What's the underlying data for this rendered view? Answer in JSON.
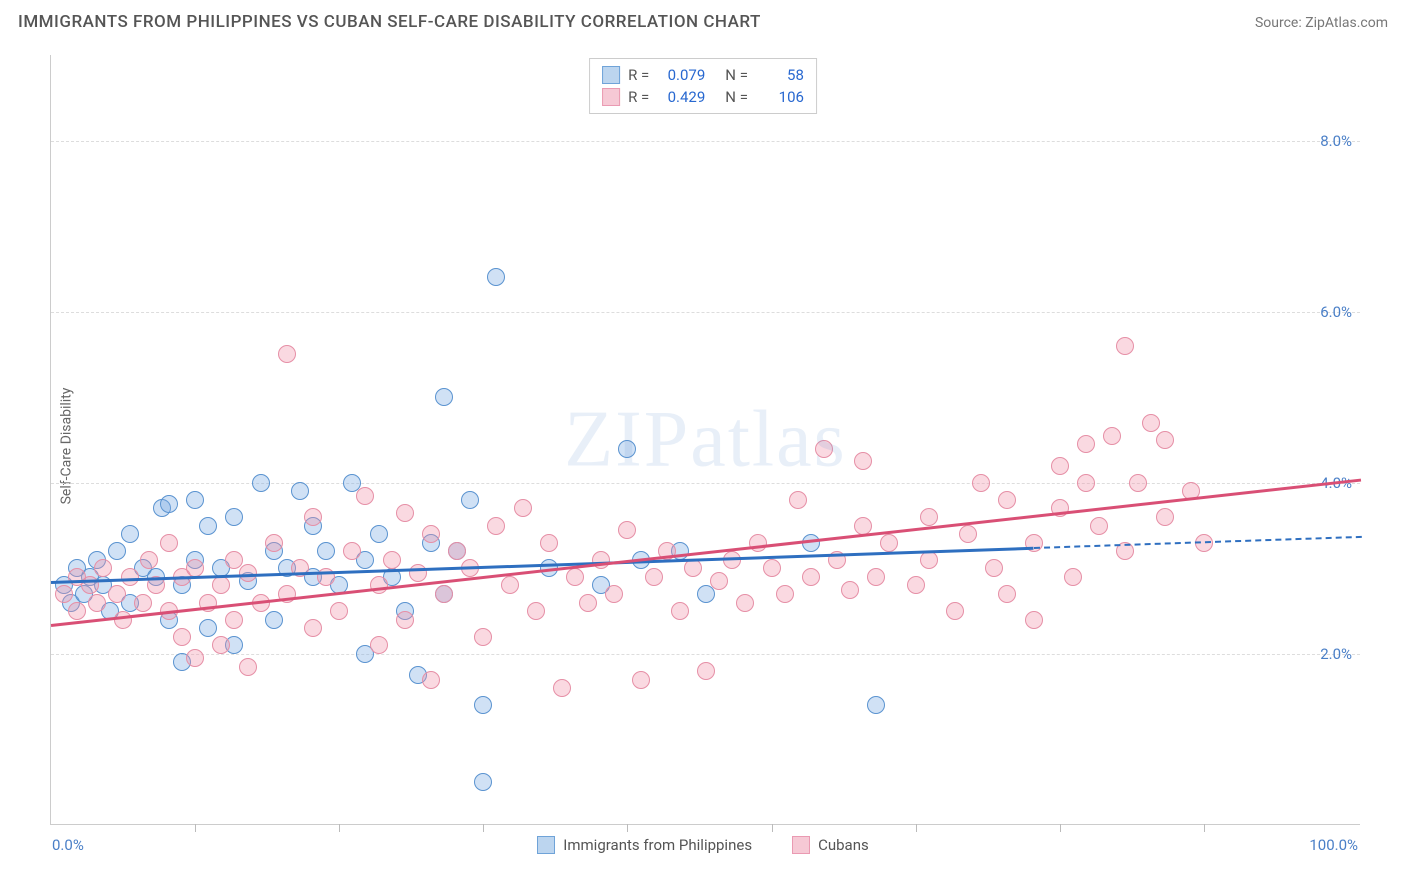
{
  "title": "IMMIGRANTS FROM PHILIPPINES VS CUBAN SELF-CARE DISABILITY CORRELATION CHART",
  "source_prefix": "Source: ",
  "source_name": "ZipAtlas.com",
  "ylabel": "Self-Care Disability",
  "watermark": "ZIPatlas",
  "chart": {
    "type": "scatter",
    "xlim": [
      0,
      100
    ],
    "ylim": [
      0,
      9
    ],
    "yticks": [
      2.0,
      4.0,
      6.0,
      8.0
    ],
    "ytick_labels": [
      "2.0%",
      "4.0%",
      "6.0%",
      "8.0%"
    ],
    "xtick_positions": [
      11,
      22,
      33,
      44,
      55,
      66,
      77,
      88
    ],
    "x_min_label": "0.0%",
    "x_max_label": "100.0%",
    "background_color": "#ffffff",
    "grid_color": "#dddddd",
    "axis_label_color": "#4a7fc7",
    "marker_radius": 9,
    "marker_opacity": 0.35,
    "line_width": 2.5
  },
  "series": [
    {
      "key": "philippines",
      "label": "Immigrants from Philippines",
      "color_fill": "rgba(120,170,225,0.35)",
      "color_stroke": "#5a93d0",
      "swatch_fill": "#bcd5ef",
      "swatch_stroke": "#6fa3d8",
      "R_label": "R =",
      "R": "0.079",
      "N_label": "N =",
      "N": "58",
      "trend": {
        "x0": 0,
        "y0": 2.85,
        "x1": 75,
        "y1": 3.25,
        "x1_dash": 100,
        "y1_dash": 3.38,
        "color": "#2e6fc0"
      },
      "points": [
        [
          1,
          2.8
        ],
        [
          1.5,
          2.6
        ],
        [
          2,
          3.0
        ],
        [
          2.5,
          2.7
        ],
        [
          3,
          2.9
        ],
        [
          3.5,
          3.1
        ],
        [
          4,
          2.8
        ],
        [
          4.5,
          2.5
        ],
        [
          5,
          3.2
        ],
        [
          6,
          2.6
        ],
        [
          6,
          3.4
        ],
        [
          7,
          3.0
        ],
        [
          8,
          2.9
        ],
        [
          8.5,
          3.7
        ],
        [
          9,
          2.4
        ],
        [
          9,
          3.75
        ],
        [
          10,
          2.8
        ],
        [
          10,
          1.9
        ],
        [
          11,
          3.1
        ],
        [
          11,
          3.8
        ],
        [
          12,
          2.3
        ],
        [
          12,
          3.5
        ],
        [
          13,
          3.0
        ],
        [
          14,
          3.6
        ],
        [
          14,
          2.1
        ],
        [
          15,
          2.85
        ],
        [
          16,
          4.0
        ],
        [
          17,
          3.2
        ],
        [
          17,
          2.4
        ],
        [
          18,
          3.0
        ],
        [
          19,
          3.9
        ],
        [
          20,
          2.9
        ],
        [
          20,
          3.5
        ],
        [
          21,
          3.2
        ],
        [
          22,
          2.8
        ],
        [
          23,
          4.0
        ],
        [
          24,
          3.1
        ],
        [
          24,
          2.0
        ],
        [
          25,
          3.4
        ],
        [
          26,
          2.9
        ],
        [
          27,
          2.5
        ],
        [
          28,
          1.75
        ],
        [
          29,
          3.3
        ],
        [
          30,
          5.0
        ],
        [
          30,
          2.7
        ],
        [
          31,
          3.2
        ],
        [
          32,
          3.8
        ],
        [
          33,
          1.4
        ],
        [
          33,
          0.5
        ],
        [
          34,
          6.4
        ],
        [
          38,
          3.0
        ],
        [
          42,
          2.8
        ],
        [
          44,
          4.4
        ],
        [
          45,
          3.1
        ],
        [
          48,
          3.2
        ],
        [
          50,
          2.7
        ],
        [
          63,
          1.4
        ],
        [
          58,
          3.3
        ]
      ]
    },
    {
      "key": "cubans",
      "label": "Cubans",
      "color_fill": "rgba(240,145,170,0.35)",
      "color_stroke": "#e68fa6",
      "swatch_fill": "#f6c9d5",
      "swatch_stroke": "#ea9ab2",
      "R_label": "R =",
      "R": "0.429",
      "N_label": "N =",
      "N": "106",
      "trend": {
        "x0": 0,
        "y0": 2.35,
        "x1": 100,
        "y1": 4.05,
        "color": "#d94f75"
      },
      "points": [
        [
          1,
          2.7
        ],
        [
          2,
          2.9
        ],
        [
          2,
          2.5
        ],
        [
          3,
          2.8
        ],
        [
          3.5,
          2.6
        ],
        [
          4,
          3.0
        ],
        [
          5,
          2.7
        ],
        [
          5.5,
          2.4
        ],
        [
          6,
          2.9
        ],
        [
          7,
          2.6
        ],
        [
          7.5,
          3.1
        ],
        [
          8,
          2.8
        ],
        [
          9,
          2.5
        ],
        [
          9,
          3.3
        ],
        [
          10,
          2.2
        ],
        [
          10,
          2.9
        ],
        [
          11,
          1.95
        ],
        [
          11,
          3.0
        ],
        [
          12,
          2.6
        ],
        [
          13,
          2.8
        ],
        [
          13,
          2.1
        ],
        [
          14,
          3.1
        ],
        [
          14,
          2.4
        ],
        [
          15,
          1.85
        ],
        [
          15,
          2.95
        ],
        [
          16,
          2.6
        ],
        [
          17,
          3.3
        ],
        [
          18,
          5.5
        ],
        [
          18,
          2.7
        ],
        [
          19,
          3.0
        ],
        [
          20,
          2.3
        ],
        [
          20,
          3.6
        ],
        [
          21,
          2.9
        ],
        [
          22,
          2.5
        ],
        [
          23,
          3.2
        ],
        [
          24,
          3.85
        ],
        [
          25,
          2.8
        ],
        [
          25,
          2.1
        ],
        [
          26,
          3.1
        ],
        [
          27,
          3.65
        ],
        [
          27,
          2.4
        ],
        [
          28,
          2.95
        ],
        [
          29,
          3.4
        ],
        [
          29,
          1.7
        ],
        [
          30,
          2.7
        ],
        [
          31,
          3.2
        ],
        [
          32,
          3.0
        ],
        [
          33,
          2.2
        ],
        [
          34,
          3.5
        ],
        [
          35,
          2.8
        ],
        [
          36,
          3.7
        ],
        [
          37,
          2.5
        ],
        [
          38,
          3.3
        ],
        [
          39,
          1.6
        ],
        [
          40,
          2.9
        ],
        [
          41,
          2.6
        ],
        [
          42,
          3.1
        ],
        [
          43,
          2.7
        ],
        [
          44,
          3.45
        ],
        [
          45,
          1.7
        ],
        [
          46,
          2.9
        ],
        [
          47,
          3.2
        ],
        [
          48,
          2.5
        ],
        [
          49,
          3.0
        ],
        [
          50,
          1.8
        ],
        [
          51,
          2.85
        ],
        [
          52,
          3.1
        ],
        [
          53,
          2.6
        ],
        [
          54,
          3.3
        ],
        [
          55,
          3.0
        ],
        [
          56,
          2.7
        ],
        [
          57,
          3.8
        ],
        [
          58,
          2.9
        ],
        [
          59,
          4.4
        ],
        [
          60,
          3.1
        ],
        [
          61,
          2.75
        ],
        [
          62,
          3.5
        ],
        [
          62,
          4.25
        ],
        [
          63,
          2.9
        ],
        [
          64,
          3.3
        ],
        [
          66,
          2.8
        ],
        [
          67,
          3.6
        ],
        [
          67,
          3.1
        ],
        [
          69,
          2.5
        ],
        [
          70,
          3.4
        ],
        [
          71,
          4.0
        ],
        [
          72,
          3.0
        ],
        [
          73,
          3.8
        ],
        [
          75,
          3.3
        ],
        [
          75,
          2.4
        ],
        [
          77,
          4.2
        ],
        [
          77,
          3.7
        ],
        [
          78,
          2.9
        ],
        [
          79,
          4.45
        ],
        [
          80,
          3.5
        ],
        [
          81,
          4.55
        ],
        [
          82,
          5.6
        ],
        [
          82,
          3.2
        ],
        [
          83,
          4.0
        ],
        [
          84,
          4.7
        ],
        [
          85,
          3.6
        ],
        [
          85,
          4.5
        ],
        [
          87,
          3.9
        ],
        [
          88,
          3.3
        ],
        [
          79,
          4.0
        ],
        [
          73,
          2.7
        ]
      ]
    }
  ]
}
